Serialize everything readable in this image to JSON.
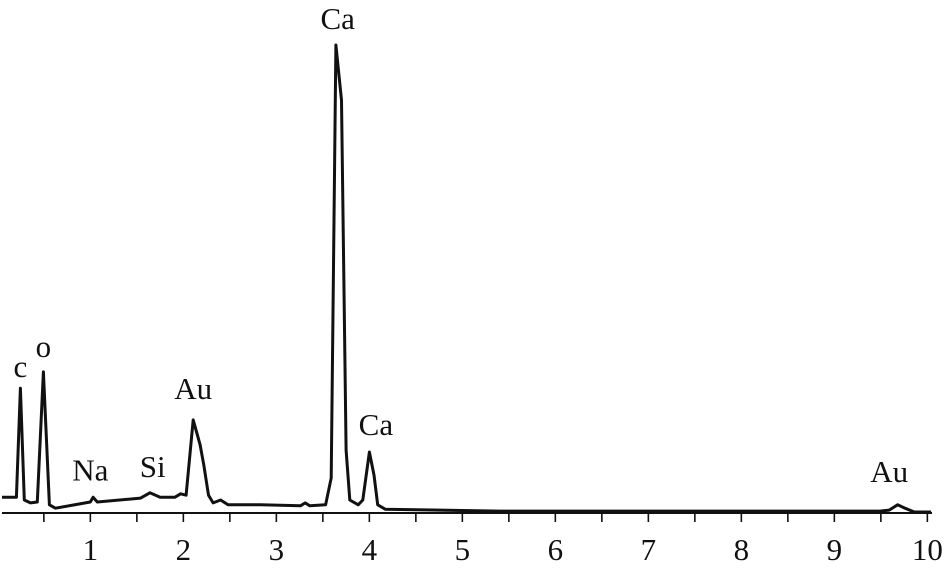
{
  "chart_data": {
    "type": "line",
    "color": "#111111",
    "x": [
      0.05,
      0.15,
      0.205,
      0.248,
      0.29,
      0.356,
      0.43,
      0.495,
      0.56,
      0.624,
      1.0,
      1.03,
      1.075,
      1.54,
      1.64,
      1.75,
      1.91,
      1.97,
      2.03,
      2.106,
      2.18,
      2.22,
      2.27,
      2.32,
      2.4,
      2.48,
      2.83,
      3.26,
      3.31,
      3.36,
      3.53,
      3.59,
      3.64,
      3.7,
      3.75,
      3.79,
      3.88,
      3.93,
      4.0,
      4.05,
      4.09,
      4.17,
      5.4,
      7.55,
      9.49,
      9.59,
      9.68,
      9.76,
      9.86,
      10.04
    ],
    "y": [
      3.3,
      3.3,
      3.3,
      26.0,
      2.7,
      2.1,
      2.3,
      29.4,
      1.7,
      1.0,
      2.3,
      3.3,
      2.3,
      3.1,
      4.2,
      3.3,
      3.3,
      4.0,
      3.7,
      19.4,
      14.2,
      10.0,
      3.7,
      2.1,
      2.7,
      1.7,
      1.7,
      1.5,
      2.1,
      1.5,
      1.7,
      7.3,
      97.5,
      86.0,
      13.1,
      2.7,
      1.7,
      2.7,
      12.7,
      7.9,
      1.7,
      0.8,
      0.4,
      0.4,
      0.4,
      0.6,
      1.7,
      1.0,
      0.2,
      0.2
    ],
    "xlim": [
      0.05,
      10.05
    ],
    "ylim": [
      0,
      105
    ],
    "xticks": [
      1,
      2,
      3,
      4,
      5,
      6,
      7,
      8,
      9,
      10
    ],
    "minor_xticks": [
      0.5,
      1.5,
      2.5,
      3.5,
      4.5,
      5.5,
      6.5,
      7.5,
      8.5,
      9.5
    ],
    "annotations": [
      {
        "text": "c",
        "x": 0.248,
        "y": 29.8
      },
      {
        "text": "o",
        "x": 0.495,
        "y": 34.0
      },
      {
        "text": "Na",
        "x": 1.0,
        "y": 8.3
      },
      {
        "text": "Si",
        "x": 1.67,
        "y": 9.0
      },
      {
        "text": "Au",
        "x": 2.106,
        "y": 25.2
      },
      {
        "text": "Ca",
        "x": 3.66,
        "y": 102.3
      },
      {
        "text": "Ca",
        "x": 4.07,
        "y": 17.7
      },
      {
        "text": "Au",
        "x": 9.59,
        "y": 7.9
      }
    ]
  }
}
